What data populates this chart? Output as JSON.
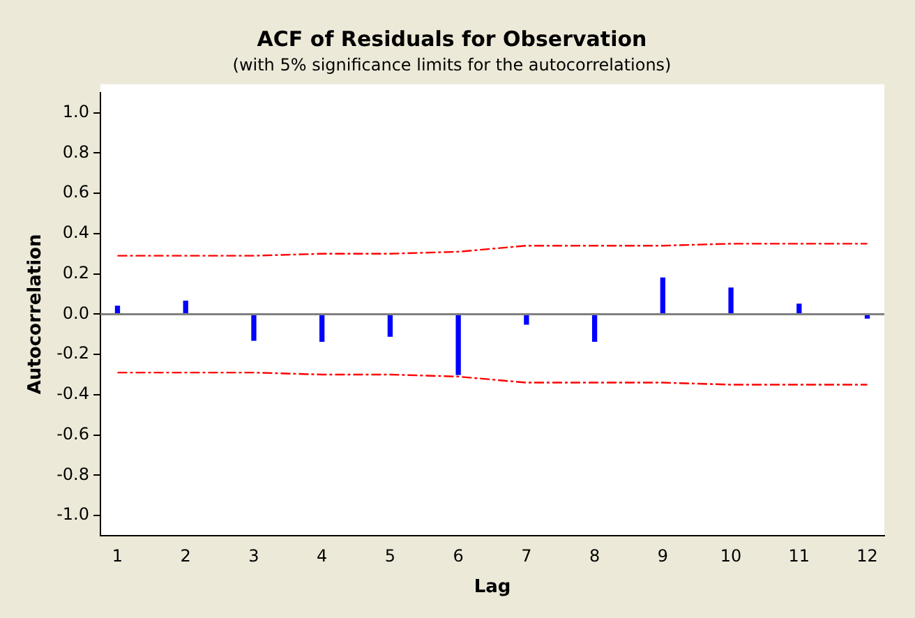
{
  "chart_data": {
    "type": "bar",
    "title": "ACF of Residuals for Observation",
    "subtitle": "(with 5% significance limits for the autocorrelations)",
    "xlabel": "Lag",
    "ylabel": "Autocorrelation",
    "x": [
      1,
      2,
      3,
      4,
      5,
      6,
      7,
      8,
      9,
      10,
      11,
      12
    ],
    "xlim": [
      0.75,
      12.25
    ],
    "xticks": [
      1,
      2,
      3,
      4,
      5,
      6,
      7,
      8,
      9,
      10,
      11,
      12
    ],
    "series": [
      {
        "color": "#0000ff",
        "values": [
          0.04,
          0.065,
          -0.13,
          -0.135,
          -0.11,
          -0.3,
          -0.05,
          -0.135,
          0.18,
          0.13,
          0.05,
          -0.02
        ]
      },
      {
        "type": "line",
        "color": "#ff0000",
        "line_style": "dashed",
        "marker": "none",
        "values": [
          0.29,
          0.29,
          0.29,
          0.3,
          0.3,
          0.31,
          0.34,
          0.34,
          0.34,
          0.35,
          0.35,
          0.35
        ]
      },
      {
        "type": "line",
        "color": "#ff0000",
        "line_style": "dashed",
        "marker": "none",
        "values": [
          -0.29,
          -0.29,
          -0.29,
          -0.3,
          -0.3,
          -0.31,
          -0.34,
          -0.34,
          -0.34,
          -0.35,
          -0.35,
          -0.35
        ]
      }
    ],
    "ylim": [
      -1.1,
      1.1
    ],
    "yticks": [
      {
        "value": 1,
        "label": "1.0"
      },
      {
        "value": 0.8,
        "label": "0.8"
      },
      {
        "value": 0.6,
        "label": "0.6"
      },
      {
        "value": 0.4,
        "label": "0.4"
      },
      {
        "value": 0.2,
        "label": "0.2"
      },
      {
        "value": 0,
        "label": "0.0"
      },
      {
        "value": -0.2,
        "label": "-0.2"
      },
      {
        "value": -0.4,
        "label": "-0.4"
      },
      {
        "value": -0.6,
        "label": "-0.6"
      },
      {
        "value": -0.8,
        "label": "-0.8"
      },
      {
        "value": -1,
        "label": "-1.0"
      }
    ],
    "ref_lines": [
      {
        "axis": "y",
        "value": 0,
        "color": "#808080"
      }
    ],
    "grid": false,
    "legend": false
  }
}
